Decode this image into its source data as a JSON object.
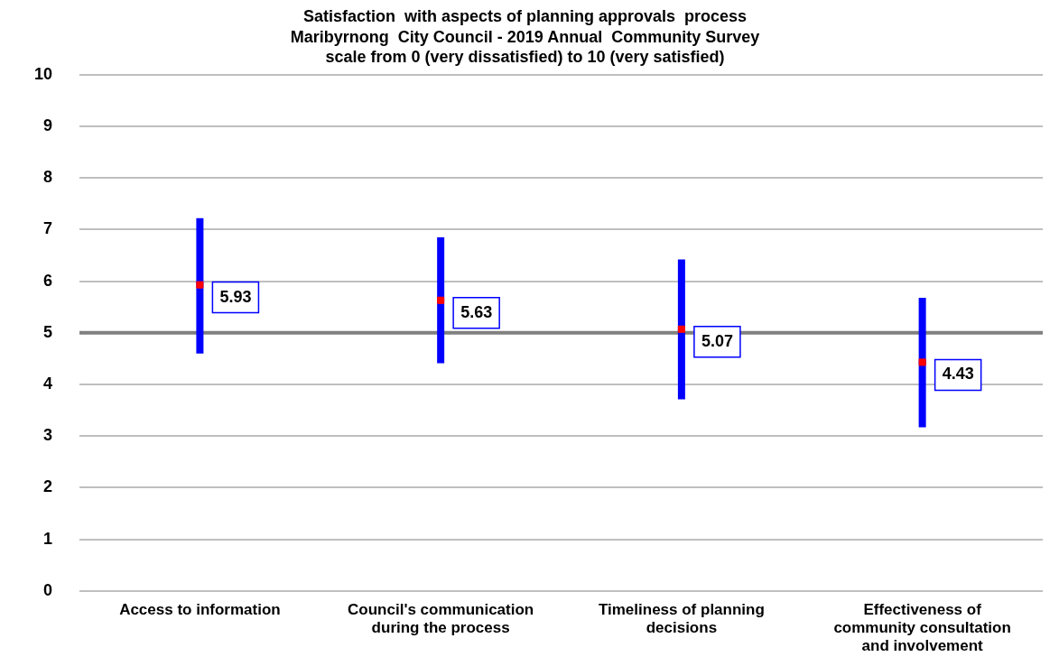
{
  "chart_data": {
    "type": "scatter",
    "title": "Satisfaction  with aspects of planning approvals  process",
    "subtitle": "Maribyrnong  City Council - 2019 Annual  Community Survey",
    "annotations": [
      "scale from 0 (very dissatisfied) to 10 (very satisfied)"
    ],
    "categories": [
      "Access to information",
      "Council's communication during the process",
      "Timeliness of planning decisions",
      "Effectiveness of community consultation and involvement"
    ],
    "series": [
      {
        "color": "#ff0000",
        "values": [
          5.93,
          5.63,
          5.07,
          4.43
        ],
        "errors": [
          [
            4.6,
            7.22
          ],
          [
            4.41,
            6.85
          ],
          [
            3.71,
            6.42
          ],
          [
            3.17,
            5.68
          ]
        ]
      }
    ],
    "ylim": [
      0,
      10
    ],
    "yticks": [
      0,
      1,
      2,
      3,
      4,
      5,
      6,
      7,
      8,
      9,
      10
    ],
    "grid": "y",
    "marker": "square",
    "data_labels": true,
    "legend": false,
    "ref_lines": [
      {
        "axis": "y",
        "value": 5,
        "color": "#808080"
      }
    ]
  }
}
